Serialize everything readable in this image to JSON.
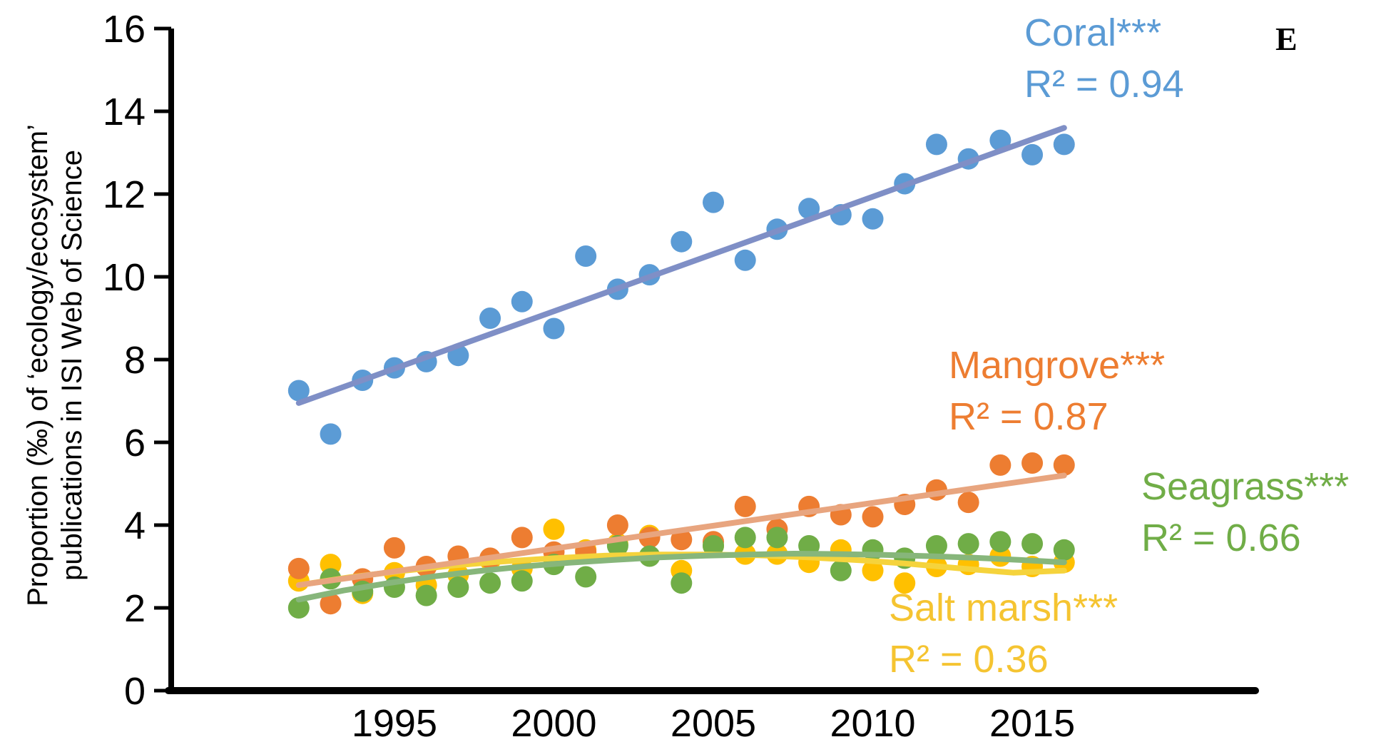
{
  "panel_label": "E",
  "chart_data": {
    "type": "scatter",
    "title": "",
    "xlabel": "",
    "ylabel_lines": [
      "Proportion (‰) of ‘ecology/ecosystem’",
      "publications in ISI Web of Science"
    ],
    "xlim": [
      1988,
      2022
    ],
    "ylim": [
      0,
      16
    ],
    "x_ticks": [
      1995,
      2000,
      2005,
      2010,
      2015
    ],
    "y_ticks": [
      0,
      2,
      4,
      6,
      8,
      10,
      12,
      14,
      16
    ],
    "grid": false,
    "series": [
      {
        "name": "Coral***",
        "r2_label": "R² = 0.94",
        "color": "#5b9bd5",
        "trend_color": "#7f8fc6",
        "trend_type": "linear",
        "x": [
          1992,
          1993,
          1994,
          1995,
          1996,
          1997,
          1998,
          1999,
          2000,
          2001,
          2002,
          2003,
          2004,
          2005,
          2006,
          2007,
          2008,
          2009,
          2010,
          2011,
          2012,
          2013,
          2014,
          2015,
          2016
        ],
        "y": [
          7.25,
          6.2,
          7.5,
          7.8,
          7.95,
          8.1,
          9.0,
          9.4,
          8.75,
          10.5,
          9.7,
          10.05,
          10.85,
          11.8,
          10.4,
          11.15,
          11.65,
          11.5,
          11.4,
          12.25,
          13.2,
          12.85,
          13.3,
          12.95,
          13.2
        ],
        "trend_y": [
          6.95,
          13.6
        ]
      },
      {
        "name": "Mangrove***",
        "r2_label": "R² = 0.87",
        "color": "#ed7d31",
        "trend_color": "#e8a57f",
        "trend_type": "linear",
        "x": [
          1992,
          1993,
          1994,
          1995,
          1996,
          1997,
          1998,
          1999,
          2000,
          2001,
          2002,
          2003,
          2004,
          2005,
          2006,
          2007,
          2008,
          2009,
          2010,
          2011,
          2012,
          2013,
          2014,
          2015,
          2016
        ],
        "y": [
          2.95,
          2.1,
          2.7,
          3.45,
          3.0,
          3.25,
          3.2,
          3.7,
          3.35,
          3.35,
          4.0,
          3.7,
          3.65,
          3.6,
          4.45,
          3.9,
          4.45,
          4.25,
          4.2,
          4.5,
          4.85,
          4.55,
          5.45,
          5.5,
          5.45
        ],
        "trend_y": [
          2.55,
          5.2
        ]
      },
      {
        "name": "Seagrass***",
        "r2_label": "R² = 0.66",
        "color": "#70ad47",
        "trend_color": "#87b67b",
        "trend_type": "polynomial",
        "x": [
          1992,
          1993,
          1994,
          1995,
          1996,
          1997,
          1998,
          1999,
          2000,
          2001,
          2002,
          2003,
          2004,
          2005,
          2006,
          2007,
          2008,
          2009,
          2010,
          2011,
          2012,
          2013,
          2014,
          2015,
          2016
        ],
        "y": [
          2.0,
          2.7,
          2.4,
          2.5,
          2.3,
          2.5,
          2.6,
          2.65,
          3.05,
          2.75,
          3.5,
          3.25,
          2.6,
          3.5,
          3.7,
          3.7,
          3.5,
          2.9,
          3.4,
          3.2,
          3.5,
          3.55,
          3.6,
          3.55,
          3.4
        ],
        "trend_y": [
          2.2,
          2.42,
          2.6,
          2.76,
          2.89,
          3.0,
          3.09,
          3.16,
          3.22,
          3.26,
          3.29,
          3.31,
          3.3,
          3.28,
          3.25,
          3.21,
          3.16,
          3.1
        ]
      },
      {
        "name": "Salt marsh***",
        "r2_label": "R² = 0.36",
        "color": "#ffc000",
        "trend_color": "#f5d33c",
        "trend_type": "polynomial",
        "x": [
          1992,
          1993,
          1994,
          1995,
          1996,
          1997,
          1998,
          1999,
          2000,
          2001,
          2002,
          2003,
          2004,
          2005,
          2006,
          2007,
          2008,
          2009,
          2010,
          2011,
          2012,
          2013,
          2014,
          2015,
          2016
        ],
        "y": [
          2.65,
          3.05,
          2.35,
          2.85,
          2.55,
          2.8,
          3.15,
          2.95,
          3.9,
          3.4,
          3.55,
          3.75,
          2.9,
          3.5,
          3.3,
          3.3,
          3.1,
          3.4,
          2.9,
          2.6,
          3.0,
          3.05,
          3.25,
          3.0,
          3.1
        ],
        "trend_y": [
          2.55,
          2.74,
          2.89,
          3.02,
          3.12,
          3.2,
          3.26,
          3.29,
          3.29,
          3.27,
          3.22,
          3.15,
          3.06,
          2.95,
          2.85,
          2.9
        ]
      }
    ]
  }
}
